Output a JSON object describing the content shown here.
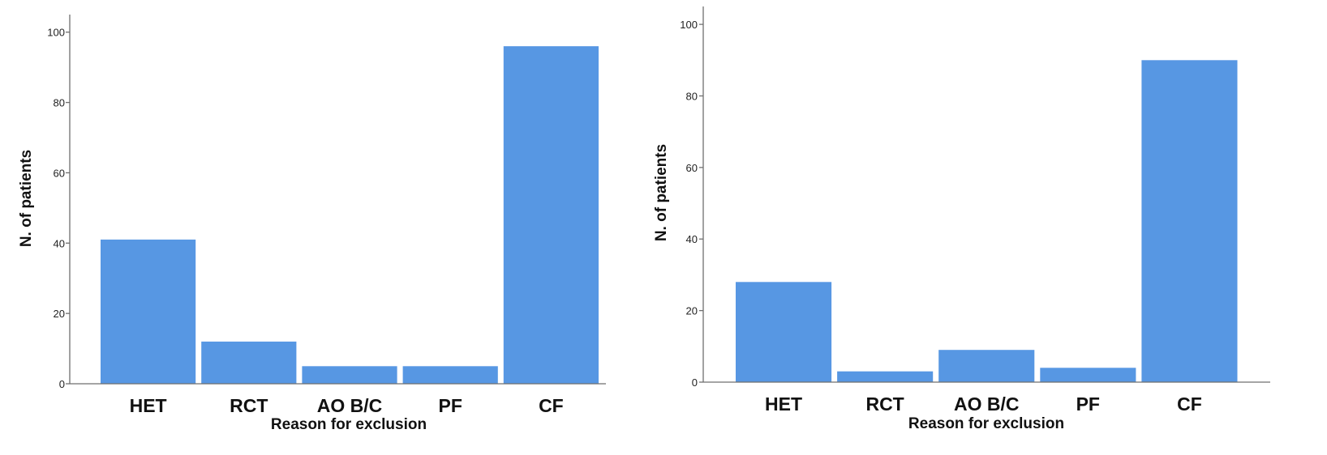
{
  "colors": {
    "bar": "#5797e3",
    "axis": "#6f6f6f",
    "text": "#111111"
  },
  "chart_data": [
    {
      "type": "bar",
      "categories": [
        "HET",
        "RCT",
        "AO B/C",
        "PF",
        "CF"
      ],
      "values": [
        41,
        12,
        5,
        5,
        96
      ],
      "xlabel": "Reason for exclusion",
      "ylabel": "N. of patients",
      "ylim": [
        0,
        105
      ],
      "yticks": [
        0,
        20,
        40,
        60,
        80,
        100
      ],
      "grid": false
    },
    {
      "type": "bar",
      "categories": [
        "HET",
        "RCT",
        "AO B/C",
        "PF",
        "CF"
      ],
      "values": [
        28,
        3,
        9,
        4,
        90
      ],
      "xlabel": "Reason for exclusion",
      "ylabel": "N. of patients",
      "ylim": [
        0,
        105
      ],
      "yticks": [
        0,
        20,
        40,
        60,
        80,
        100
      ],
      "grid": false
    }
  ]
}
